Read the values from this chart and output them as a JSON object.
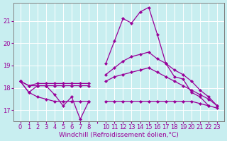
{
  "background_color": "#c8eef0",
  "grid_color": "#ffffff",
  "line_color": "#990099",
  "marker": "D",
  "markersize": 2.2,
  "linewidth": 0.9,
  "xlabel": "Windchill (Refroidissement éolien,°C)",
  "xlabel_fontsize": 6.5,
  "tick_fontsize": 6.0,
  "ylim": [
    16.5,
    21.8
  ],
  "yticks": [
    17,
    18,
    19,
    20,
    21
  ],
  "xlabels": [
    "0",
    "1",
    "2",
    "3",
    "4",
    "5",
    "6",
    "7",
    "8",
    "",
    "10",
    "11",
    "12",
    "13",
    "14",
    "15",
    "16",
    "17",
    "18",
    "19",
    "20",
    "21",
    "22",
    "23"
  ],
  "series_main": [
    18.3,
    17.8,
    18.1,
    18.1,
    17.7,
    17.2,
    17.6,
    16.6,
    17.4,
    null,
    19.1,
    20.1,
    21.1,
    20.9,
    21.4,
    21.6,
    20.4,
    19.1,
    18.5,
    18.4,
    17.8,
    17.6,
    17.2,
    null
  ],
  "series_upper": [
    18.3,
    18.1,
    18.2,
    18.2,
    18.2,
    18.2,
    18.2,
    18.2,
    18.2,
    null,
    18.6,
    18.9,
    19.2,
    19.4,
    19.5,
    19.6,
    19.3,
    19.1,
    18.8,
    18.6,
    18.3,
    17.9,
    17.6,
    17.2
  ],
  "series_middle": [
    18.3,
    18.1,
    18.1,
    18.1,
    18.1,
    18.1,
    18.1,
    18.1,
    18.1,
    null,
    18.3,
    18.5,
    18.6,
    18.7,
    18.8,
    18.9,
    18.7,
    18.5,
    18.3,
    18.1,
    17.9,
    17.7,
    17.5,
    17.2
  ],
  "series_lower": [
    18.3,
    17.8,
    17.6,
    17.5,
    17.4,
    17.4,
    17.4,
    17.4,
    17.4,
    null,
    17.4,
    17.4,
    17.4,
    17.4,
    17.4,
    17.4,
    17.4,
    17.4,
    17.4,
    17.4,
    17.4,
    17.3,
    17.2,
    17.1
  ]
}
